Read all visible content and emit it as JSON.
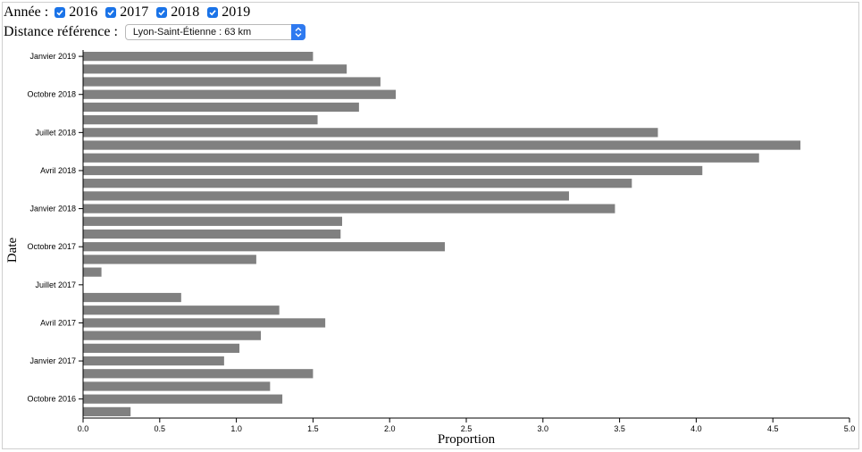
{
  "controls": {
    "year_label": "Année :",
    "years": [
      {
        "label": "2016",
        "checked": true
      },
      {
        "label": "2017",
        "checked": true
      },
      {
        "label": "2018",
        "checked": true
      },
      {
        "label": "2019",
        "checked": true
      }
    ],
    "distance_label": "Distance référence :",
    "distance_value": "Lyon-Saint-Étienne : 63 km",
    "accent_color": "#1a73e8"
  },
  "chart_data": {
    "type": "bar",
    "orientation": "horizontal",
    "xlabel": "Proportion",
    "ylabel": "Date",
    "xlim": [
      0,
      5.0
    ],
    "x_ticks": [
      "0.0",
      "0.5",
      "1.0",
      "1.5",
      "2.0",
      "2.5",
      "3.0",
      "3.5",
      "4.0",
      "4.5",
      "5.0"
    ],
    "y_tick_labels": [
      {
        "label": "Janvier 2019",
        "category": "2019-01"
      },
      {
        "label": "Octobre 2018",
        "category": "2018-10"
      },
      {
        "label": "Juillet 2018",
        "category": "2018-07"
      },
      {
        "label": "Avril 2018",
        "category": "2018-04"
      },
      {
        "label": "Janvier 2018",
        "category": "2018-01"
      },
      {
        "label": "Octobre 2017",
        "category": "2017-10"
      },
      {
        "label": "Juillet 2017",
        "category": "2017-07"
      },
      {
        "label": "Avril 2017",
        "category": "2017-04"
      },
      {
        "label": "Janvier 2017",
        "category": "2017-01"
      },
      {
        "label": "Octobre 2016",
        "category": "2016-10"
      }
    ],
    "bar_color": "#808080",
    "categories": [
      "2016-09",
      "2016-10",
      "2016-11",
      "2016-12",
      "2017-01",
      "2017-02",
      "2017-03",
      "2017-04",
      "2017-05",
      "2017-06",
      "2017-07",
      "2017-08",
      "2017-09",
      "2017-10",
      "2017-11",
      "2017-12",
      "2018-01",
      "2018-02",
      "2018-03",
      "2018-04",
      "2018-05",
      "2018-06",
      "2018-07",
      "2018-08",
      "2018-09",
      "2018-10",
      "2018-11",
      "2018-12",
      "2019-01"
    ],
    "values": [
      0.31,
      1.3,
      1.22,
      1.5,
      0.92,
      1.02,
      1.16,
      1.58,
      1.28,
      0.64,
      0,
      0.12,
      1.13,
      2.36,
      1.68,
      1.69,
      3.47,
      3.17,
      3.58,
      4.04,
      4.41,
      4.68,
      3.75,
      1.53,
      1.8,
      2.04,
      1.94,
      1.72,
      1.5
    ]
  }
}
